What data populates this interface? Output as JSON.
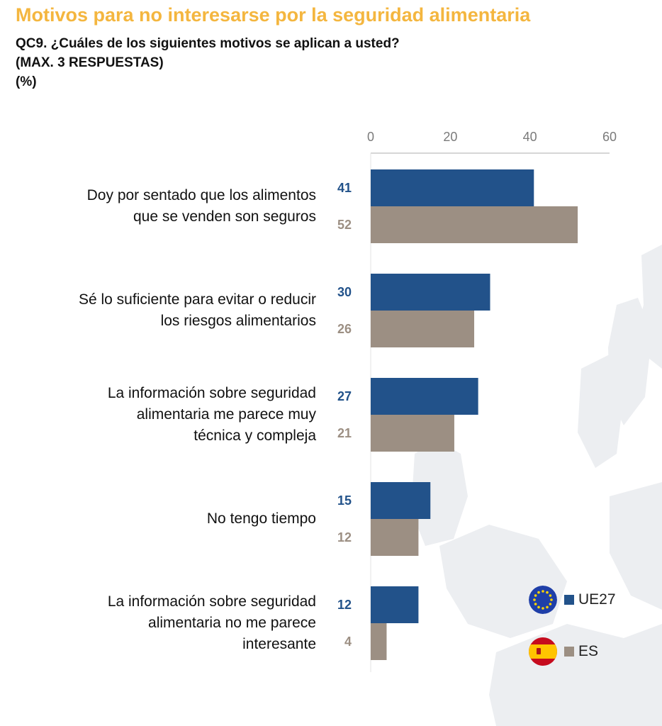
{
  "header": {
    "title": "Motivos para no interesarse por la seguridad alimentaria",
    "question_lines": [
      "QC9. ¿Cuáles de los siguientes motivos se aplican a usted?",
      "(MAX. 3 RESPUESTAS)",
      "(%)"
    ]
  },
  "colors": {
    "title": "#f4b63f",
    "ue27": "#22528a",
    "es": "#9c8f83",
    "axis_text": "#7a7a7a",
    "gridline": "#c9c9c9"
  },
  "legend": [
    {
      "label": "UE27",
      "icon": "eu-flag-icon"
    },
    {
      "label": "ES",
      "icon": "spain-flag-icon"
    }
  ],
  "chart_data": {
    "type": "bar",
    "orientation": "horizontal",
    "x_ticks": [
      "0",
      "20",
      "40",
      "60"
    ],
    "xlim": [
      0,
      60
    ],
    "categories": [
      [
        "Doy por sentado que los alimentos",
        "que se venden son seguros"
      ],
      [
        "Sé lo suficiente  para evitar o reducir",
        "los riesgos alimentarios"
      ],
      [
        "La información sobre seguridad",
        "alimentaria me parece muy",
        "técnica y compleja"
      ],
      [
        "No tengo tiempo"
      ],
      [
        "La información sobre seguridad",
        "alimentaria no me parece",
        "interesante"
      ]
    ],
    "series": [
      {
        "name": "UE27",
        "values": [
          41,
          30,
          27,
          15,
          12
        ]
      },
      {
        "name": "ES",
        "values": [
          52,
          26,
          21,
          12,
          4
        ]
      }
    ],
    "legend_position": "bottom-right"
  }
}
